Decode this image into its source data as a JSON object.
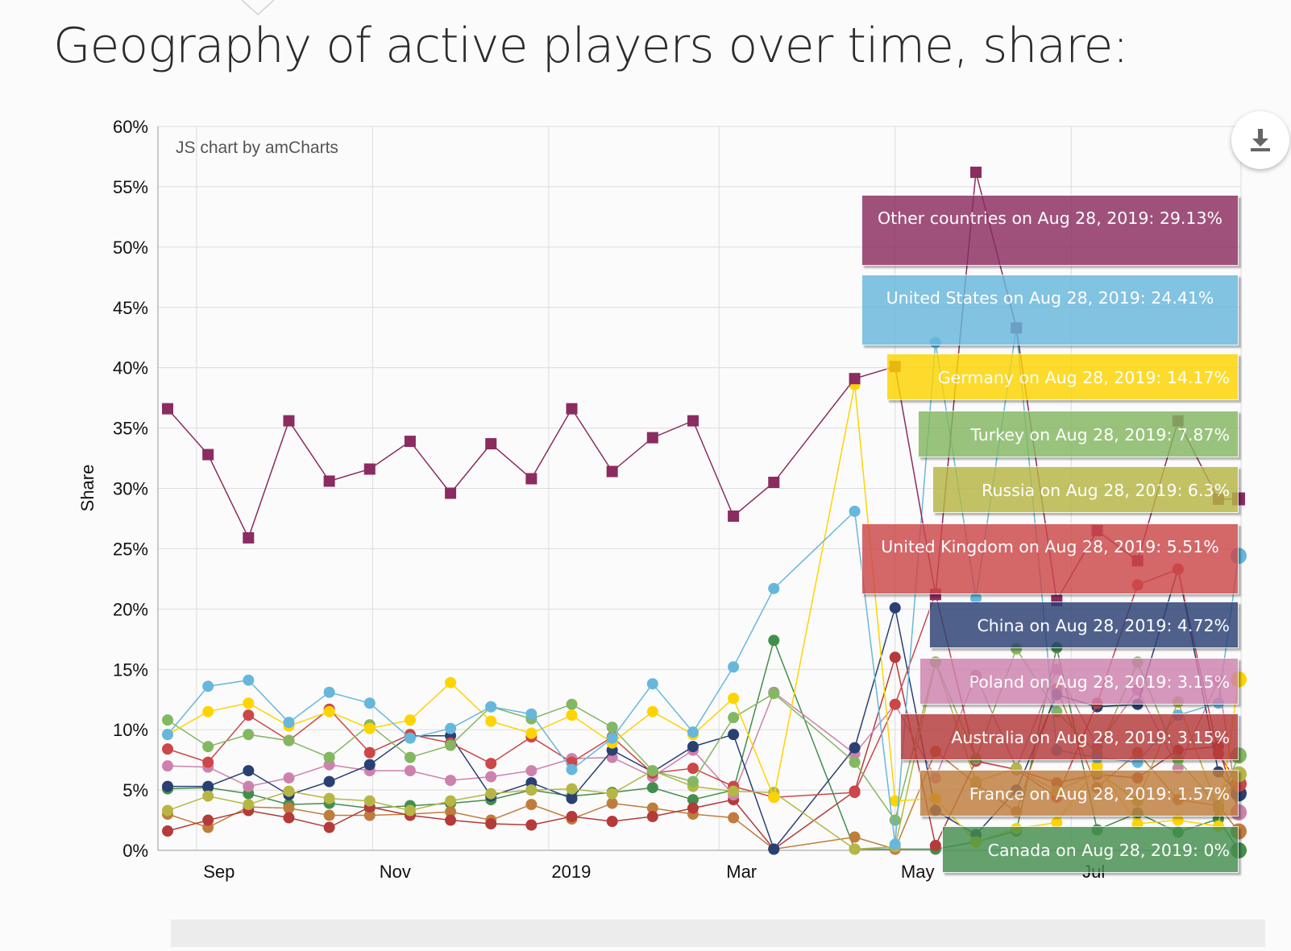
{
  "page": {
    "title": "Geography of active players over time, share:"
  },
  "toolbar": {
    "download_icon": "download-icon"
  },
  "chart_data": {
    "type": "line",
    "title": "Geography of active players over time, share:",
    "credit": "JS chart by amCharts",
    "ylabel": "Share",
    "xlabel": "",
    "ylim": [
      0,
      60
    ],
    "y_ticks": [
      "0%",
      "5%",
      "10%",
      "15%",
      "20%",
      "25%",
      "30%",
      "35%",
      "40%",
      "45%",
      "50%",
      "55%",
      "60%"
    ],
    "x_ticks": [
      "Sep",
      "Nov",
      "2019",
      "Mar",
      "May",
      "Jul"
    ],
    "grid": true,
    "x": [
      "2018-08-22",
      "2018-09-05",
      "2018-09-19",
      "2018-10-03",
      "2018-10-17",
      "2018-10-31",
      "2018-11-14",
      "2018-11-28",
      "2018-12-12",
      "2018-12-26",
      "2019-01-09",
      "2019-01-23",
      "2019-02-06",
      "2019-02-20",
      "2019-03-06",
      "2019-03-20",
      "2019-04-17",
      "2019-05-01",
      "2019-05-15",
      "2019-05-29",
      "2019-06-12",
      "2019-06-26",
      "2019-07-10",
      "2019-07-24",
      "2019-08-07",
      "2019-08-21",
      "2019-08-28"
    ],
    "series": [
      {
        "name": "Other countries",
        "color": "#8b2c60",
        "marker": "square",
        "values": [
          36.6,
          32.8,
          25.9,
          35.6,
          30.6,
          31.6,
          33.9,
          29.6,
          33.7,
          30.8,
          36.6,
          31.4,
          34.2,
          35.6,
          27.7,
          30.5,
          39.1,
          40.1,
          21.2,
          56.2,
          43.3,
          20.7,
          26.5,
          24.0,
          35.6,
          29.1,
          29.13
        ]
      },
      {
        "name": "United States",
        "color": "#67b7dc",
        "marker": "circle",
        "values": [
          9.6,
          13.6,
          14.1,
          10.6,
          13.1,
          12.2,
          9.3,
          10.1,
          11.9,
          11.3,
          6.7,
          9.3,
          13.8,
          9.8,
          15.2,
          21.7,
          28.1,
          0.5,
          42.1,
          20.9,
          43.3,
          8.3,
          7.7,
          7.3,
          11.2,
          12.2,
          24.41
        ]
      },
      {
        "name": "Germany",
        "color": "#fdd400",
        "marker": "circle",
        "values": [
          9.6,
          11.5,
          12.2,
          10.3,
          11.5,
          10.1,
          10.8,
          13.9,
          10.7,
          9.7,
          11.2,
          8.9,
          11.5,
          9.6,
          12.6,
          4.4,
          38.6,
          4.1,
          4.3,
          0.7,
          1.8,
          2.3,
          7.0,
          2.2,
          2.5,
          2.0,
          14.17
        ]
      },
      {
        "name": "Turkey",
        "color": "#84b761",
        "marker": "circle",
        "values": [
          10.8,
          8.6,
          9.6,
          9.1,
          7.7,
          10.4,
          7.7,
          8.7,
          11.9,
          10.9,
          12.1,
          10.2,
          6.6,
          5.7,
          11.0,
          13.0,
          7.3,
          2.5,
          15.6,
          7.6,
          16.7,
          11.5,
          8.0,
          15.6,
          7.5,
          3.6,
          7.87
        ]
      },
      {
        "name": "Russia",
        "color": "#b6b645",
        "marker": "circle",
        "values": [
          3.3,
          4.5,
          3.8,
          4.9,
          4.3,
          4.1,
          3.3,
          4.1,
          4.7,
          5.0,
          5.1,
          4.7,
          6.6,
          5.3,
          4.9,
          4.8,
          0.1,
          0.3,
          15.6,
          5.7,
          6.8,
          4.9,
          6.5,
          4.1,
          12.3,
          3.4,
          6.3
        ]
      },
      {
        "name": "United Kingdom",
        "color": "#cc4748",
        "marker": "circle",
        "values": [
          8.4,
          7.3,
          11.2,
          9.1,
          11.7,
          8.1,
          9.6,
          8.9,
          7.2,
          9.4,
          7.3,
          9.4,
          6.4,
          6.8,
          5.3,
          4.4,
          4.8,
          12.1,
          21.3,
          7.4,
          6.7,
          4.4,
          12.2,
          22.0,
          23.3,
          8.0,
          5.51
        ]
      },
      {
        "name": "China",
        "color": "#2a4073",
        "marker": "circle",
        "values": [
          5.3,
          5.3,
          6.6,
          4.6,
          5.7,
          7.1,
          9.5,
          9.5,
          4.5,
          5.6,
          4.3,
          8.3,
          6.5,
          8.6,
          9.6,
          0.1,
          8.5,
          20.1,
          3.3,
          1.3,
          5.0,
          12.9,
          11.9,
          12.1,
          23.3,
          6.5,
          4.72
        ]
      },
      {
        "name": "Poland",
        "color": "#cd82ad",
        "marker": "circle",
        "values": [
          7.0,
          6.9,
          5.3,
          6.0,
          7.1,
          6.6,
          6.6,
          5.8,
          6.1,
          6.6,
          7.6,
          7.7,
          6.1,
          8.3,
          4.6,
          13.1,
          8.0,
          12.1,
          6.0,
          14.5,
          6.8,
          15.0,
          8.6,
          13.3,
          6.8,
          14.1,
          3.15
        ]
      },
      {
        "name": "Australia",
        "color": "#b53a3a",
        "marker": "circle",
        "values": [
          1.6,
          2.5,
          3.3,
          2.7,
          1.9,
          3.6,
          2.9,
          2.5,
          2.2,
          2.1,
          2.8,
          2.4,
          2.8,
          3.5,
          4.2,
          0.1,
          4.9,
          16.0,
          0.4,
          7.4,
          6.7,
          5.6,
          6.3,
          6.0,
          8.3,
          8.6,
          3.15
        ]
      },
      {
        "name": "France",
        "color": "#bf7d3d",
        "marker": "circle",
        "values": [
          3.0,
          1.9,
          3.6,
          3.5,
          2.9,
          2.9,
          3.0,
          3.2,
          2.5,
          3.8,
          2.6,
          3.9,
          3.5,
          3.0,
          2.7,
          0.1,
          1.1,
          0.1,
          8.2,
          5.5,
          3.2,
          13.4,
          5.2,
          8.1,
          4.2,
          3.7,
          1.57
        ]
      },
      {
        "name": "Canada",
        "color": "#448e4d",
        "marker": "circle",
        "values": [
          5.1,
          5.2,
          4.7,
          3.8,
          3.9,
          3.5,
          3.7,
          3.9,
          4.2,
          5.0,
          4.5,
          4.8,
          5.2,
          4.2,
          5.0,
          17.4,
          0.1,
          0.1,
          0.1,
          0.7,
          1.6,
          16.8,
          1.7,
          3.1,
          1.5,
          2.6,
          0.0
        ]
      }
    ],
    "tooltips": [
      "Other countries on Aug 28, 2019: 29.13%",
      "United States on Aug 28, 2019: 24.41%",
      "Germany on Aug 28, 2019: 14.17%",
      "Turkey on Aug 28, 2019: 7.87%",
      "Russia on Aug 28, 2019: 6.3%",
      "United Kingdom on Aug 28, 2019: 5.51%",
      "China on Aug 28, 2019: 4.72%",
      "Poland on Aug 28, 2019: 3.15%",
      "Australia on Aug 28, 2019: 3.15%",
      "France on Aug 28, 2019: 1.57%",
      "Canada on Aug 28, 2019: 0%"
    ]
  }
}
